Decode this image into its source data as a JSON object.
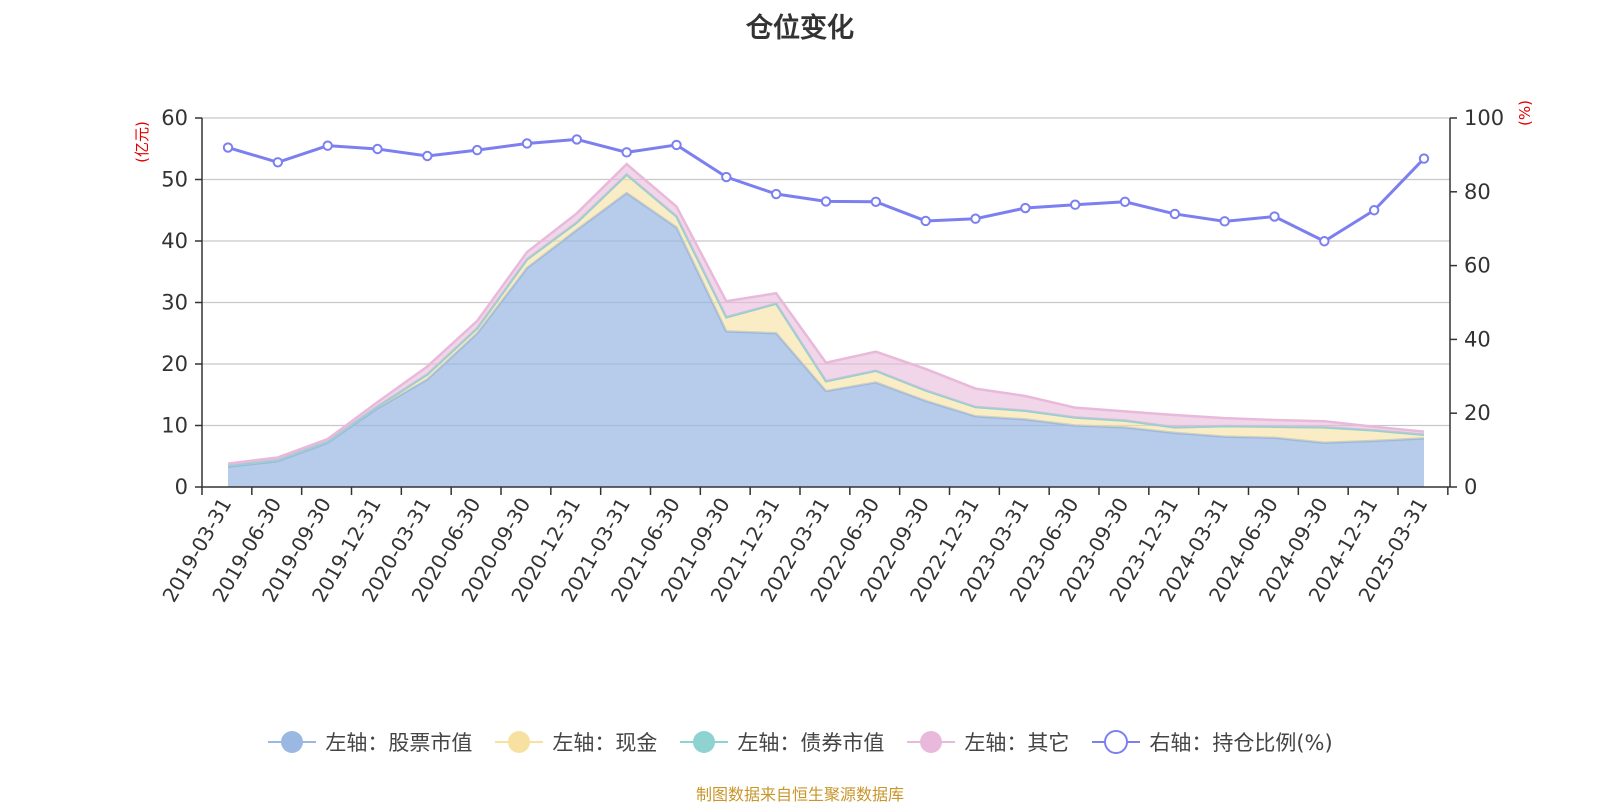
{
  "chart_data": {
    "type": "area",
    "title": "仓位变化",
    "y_left_label": "(亿元)",
    "y_right_label": "(%)",
    "ylim_left": [
      0,
      60
    ],
    "ylim_right": [
      0,
      100
    ],
    "y_left_ticks": [
      0,
      10,
      20,
      30,
      40,
      50,
      60
    ],
    "y_right_ticks": [
      0,
      20,
      40,
      60,
      80,
      100
    ],
    "grid": true,
    "legend_position": "bottom",
    "categories": [
      "2019-03-31",
      "2019-06-30",
      "2019-09-30",
      "2019-12-31",
      "2020-03-31",
      "2020-06-30",
      "2020-09-30",
      "2020-12-31",
      "2021-03-31",
      "2021-06-30",
      "2021-09-30",
      "2021-12-31",
      "2022-03-31",
      "2022-06-30",
      "2022-09-30",
      "2022-12-31",
      "2023-03-31",
      "2023-06-30",
      "2023-09-30",
      "2023-12-31",
      "2024-03-31",
      "2024-06-30",
      "2024-09-30",
      "2024-12-31",
      "2025-03-31"
    ],
    "series": [
      {
        "name": "左轴：股票市值",
        "axis": "left",
        "stack": true,
        "color": "#9ab8e2",
        "values": [
          3.3,
          4.2,
          7.2,
          12.8,
          17.5,
          25.0,
          35.6,
          41.8,
          47.8,
          42.2,
          25.3,
          25.0,
          15.6,
          17.0,
          14.0,
          11.5,
          11.0,
          10.0,
          9.7,
          8.8,
          8.2,
          8.0,
          7.2,
          7.5,
          7.9
        ]
      },
      {
        "name": "左轴：现金",
        "axis": "left",
        "stack": true,
        "color": "#f7e1a0",
        "values": [
          0.2,
          0.2,
          0.2,
          0.3,
          0.8,
          0.8,
          1.4,
          1.2,
          3.0,
          1.8,
          2.3,
          4.8,
          1.6,
          1.9,
          1.7,
          1.5,
          1.4,
          1.3,
          1.1,
          0.9,
          1.7,
          1.8,
          2.5,
          1.7,
          0.6
        ]
      },
      {
        "name": "左轴：债券市值",
        "axis": "left",
        "stack": true,
        "color": "#8ed2d2",
        "values": [
          0,
          0,
          0,
          0,
          0,
          0,
          0,
          0,
          0,
          0,
          0,
          0,
          0,
          0,
          0,
          0,
          0,
          0,
          0,
          0,
          0,
          0,
          0,
          0,
          0
        ]
      },
      {
        "name": "左轴：其它",
        "axis": "left",
        "stack": true,
        "color": "#e8b9da",
        "values": [
          0.3,
          0.4,
          0.4,
          0.7,
          1.3,
          1.2,
          1.2,
          1.5,
          1.7,
          1.6,
          2.6,
          1.7,
          3.0,
          3.1,
          3.5,
          3.0,
          2.4,
          1.6,
          1.5,
          2.0,
          1.3,
          1.1,
          1.0,
          0.6,
          0.5
        ]
      },
      {
        "name": "右轴：持仓比例(%)",
        "axis": "right",
        "type": "line",
        "color": "#7b7ff0",
        "values": [
          92.0,
          88.0,
          92.5,
          91.6,
          89.7,
          91.3,
          93.1,
          94.2,
          90.7,
          92.7,
          84.0,
          79.4,
          77.4,
          77.3,
          72.1,
          72.7,
          75.6,
          76.5,
          77.3,
          74.0,
          72.0,
          73.3,
          66.6,
          75.0,
          89.0
        ]
      }
    ]
  },
  "legend": [
    {
      "label": "左轴：股票市值",
      "color": "#9ab8e2",
      "kind": "area"
    },
    {
      "label": "左轴：现金",
      "color": "#f7e1a0",
      "kind": "area"
    },
    {
      "label": "左轴：债券市值",
      "color": "#8ed2d2",
      "kind": "area"
    },
    {
      "label": "左轴：其它",
      "color": "#e8b9da",
      "kind": "area"
    },
    {
      "label": "右轴：持仓比例(%)",
      "color": "#7b7ff0",
      "kind": "line"
    }
  ],
  "source": "制图数据来自恒生聚源数据库"
}
